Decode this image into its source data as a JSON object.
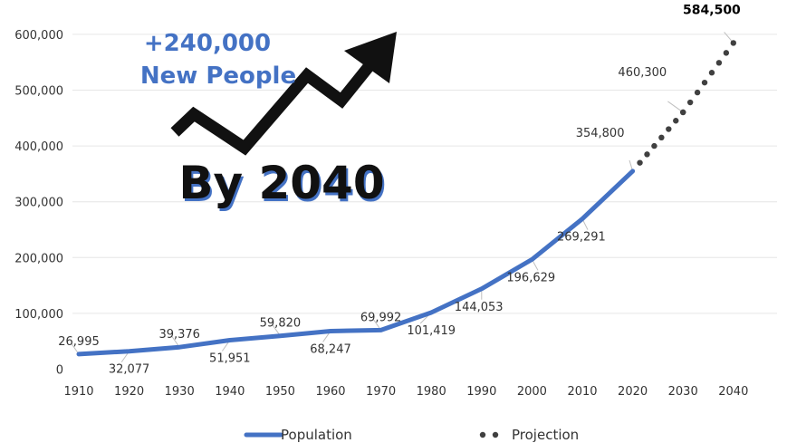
{
  "chart_data": {
    "type": "line",
    "x": [
      1910,
      1920,
      1930,
      1940,
      1950,
      1960,
      1970,
      1980,
      1990,
      2000,
      2010,
      2020,
      2030,
      2040
    ],
    "series": [
      {
        "name": "Population",
        "x": [
          1910,
          1920,
          1930,
          1940,
          1950,
          1960,
          1970,
          1980,
          1990,
          2000,
          2010,
          2020
        ],
        "values": [
          26995,
          32077,
          39376,
          51951,
          59820,
          68247,
          69992,
          101419,
          144053,
          196629,
          269291,
          354800
        ],
        "color": "#4472C4",
        "style": "solid"
      },
      {
        "name": "Projection",
        "x": [
          2020,
          2030,
          2040
        ],
        "values": [
          354800,
          460300,
          584500
        ],
        "color": "#404040",
        "style": "dotted"
      }
    ],
    "data_labels": [
      "26,995",
      "32,077",
      "39,376",
      "51,951",
      "59,820",
      "68,247",
      "69,992",
      "101,419",
      "144,053",
      "196,629",
      "269,291",
      "354,800",
      "460,300",
      "584,500"
    ],
    "x_tick_labels": [
      "1910",
      "1920",
      "1930",
      "1940",
      "1950",
      "1960",
      "1970",
      "1980",
      "1990",
      "2000",
      "2010",
      "2020",
      "2030",
      "2040"
    ],
    "y_tick_labels": [
      "0",
      "100,000",
      "200,000",
      "300,000",
      "400,000",
      "500,000",
      "600,000"
    ],
    "ylim": [
      0,
      600000
    ],
    "xlabel": "",
    "ylabel": "",
    "grid": true,
    "legend_position": "bottom"
  },
  "overlay": {
    "headline_line1": "+240,000",
    "headline_line2": "New People",
    "big_text": "By 2040",
    "headline_color": "#4472C4",
    "arrow_icon": "trending-up-arrow-icon"
  },
  "legend": {
    "population_label": "Population",
    "projection_label": "Projection"
  }
}
